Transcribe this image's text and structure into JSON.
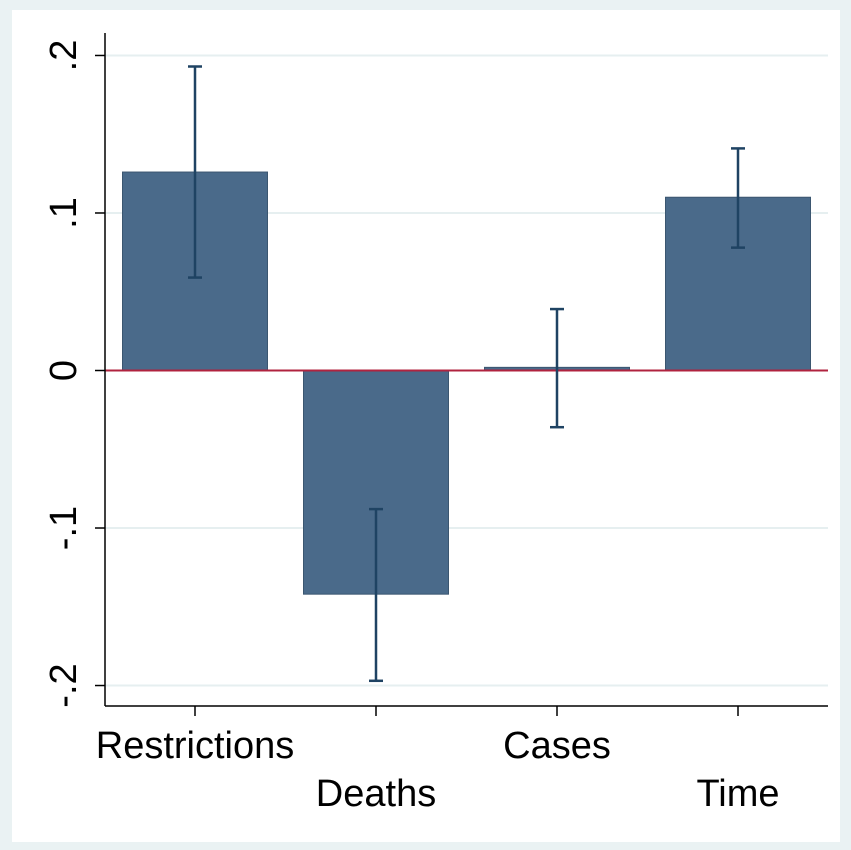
{
  "chart_data": {
    "type": "bar",
    "title": "",
    "xlabel": "",
    "ylabel": "",
    "categories": [
      "Restrictions",
      "Deaths",
      "Cases",
      "Time"
    ],
    "values": [
      0.126,
      -0.142,
      0.002,
      0.11
    ],
    "ci_upper": [
      0.193,
      -0.088,
      0.039,
      0.141
    ],
    "ci_lower": [
      0.059,
      -0.197,
      -0.036,
      0.078
    ],
    "ylim": [
      -0.213,
      0.213
    ],
    "yticks": [
      {
        "value": -0.2,
        "label": "-.2"
      },
      {
        "value": -0.1,
        "label": "-.1"
      },
      {
        "value": 0,
        "label": "0"
      },
      {
        "value": 0.1,
        "label": ".1"
      },
      {
        "value": 0.2,
        "label": ".2"
      }
    ],
    "grid": true,
    "reference_line": 0,
    "colors": {
      "bar": "#4a6a8a",
      "bar_edge": "#3b5670",
      "error_bar": "#1f4363",
      "reference_line": "#b0233f",
      "grid": "#e6eff0",
      "outer_background": "#eaf2f3",
      "plot_background": "#ffffff"
    }
  }
}
